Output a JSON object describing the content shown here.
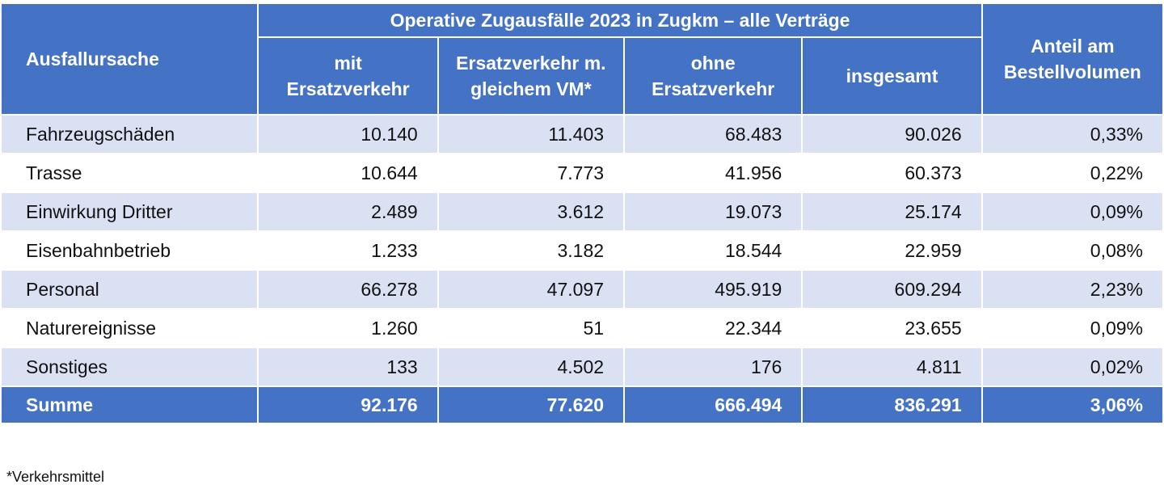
{
  "table": {
    "header": {
      "cause": "Ausfallursache",
      "group": "Operative Zugausfälle 2023 in Zugkm – alle Verträge",
      "columns": [
        "mit\nErsatzverkehr",
        "Ersatzverkehr m.\ngleichem VM*",
        "ohne\nErsatzverkehr",
        "insgesamt"
      ],
      "share": "Anteil am\nBestellvolumen"
    },
    "rows": [
      [
        "Fahrzeugschäden",
        "10.140",
        "11.403",
        "68.483",
        "90.026",
        "0,33%"
      ],
      [
        "Trasse",
        "10.644",
        "7.773",
        "41.956",
        "60.373",
        "0,22%"
      ],
      [
        "Einwirkung Dritter",
        "2.489",
        "3.612",
        "19.073",
        "25.174",
        "0,09%"
      ],
      [
        "Eisenbahnbetrieb",
        "1.233",
        "3.182",
        "18.544",
        "22.959",
        "0,08%"
      ],
      [
        "Personal",
        "66.278",
        "47.097",
        "495.919",
        "609.294",
        "2,23%"
      ],
      [
        "Naturereignisse",
        "1.260",
        "51",
        "22.344",
        "23.655",
        "0,09%"
      ],
      [
        "Sonstiges",
        "133",
        "4.502",
        "176",
        "4.811",
        "0,02%"
      ]
    ],
    "total": [
      "Summe",
      "92.176",
      "77.620",
      "666.494",
      "836.291",
      "3,06%"
    ]
  },
  "footnote": "*Verkehrsmittel"
}
